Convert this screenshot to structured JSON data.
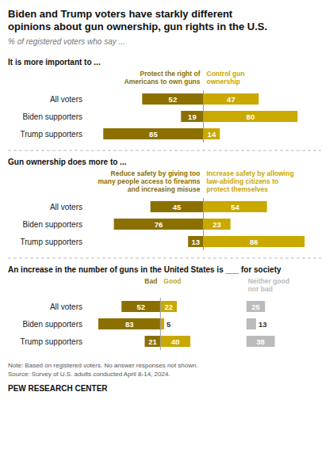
{
  "title": "Biden and Trump voters have starkly different\nopinions about gun ownership, gun rights in the U.S.",
  "subtitle": "% of registered voters who say ...",
  "note": "Note: Based on registered voters. No answer responses not shown.\nSource: Survey of U.S. adults conducted April 8-14, 2024.",
  "source": "PEW RESEARCH CENTER",
  "chart_data": [
    {
      "type": "bar",
      "orientation": "horizontal",
      "title": "It is more important to ...",
      "categories": [
        "All voters",
        "Biden supporters",
        "Trump supporters"
      ],
      "series": [
        {
          "name": "Protect the right of\nAmericans to own guns",
          "color": "#8B7000",
          "values": [
            52,
            19,
            85
          ]
        },
        {
          "name": "Control gun\nownership",
          "color": "#C9A800",
          "values": [
            47,
            80,
            14
          ]
        }
      ],
      "xlim": [
        0,
        100
      ],
      "data_labels": true,
      "tick_labels": "y"
    },
    {
      "type": "bar",
      "orientation": "horizontal",
      "title": "Gun ownership does more to ...",
      "categories": [
        "All voters",
        "Biden supporters",
        "Trump supporters"
      ],
      "series": [
        {
          "name": "Reduce safety by giving too\nmany people access to firearms\nand increasing misuse",
          "color": "#8B7000",
          "values": [
            45,
            76,
            13
          ]
        },
        {
          "name": "Increase safety by allowing\nlaw-abiding citizens to\nprotect themselves",
          "color": "#C9A800",
          "values": [
            54,
            23,
            86
          ]
        }
      ],
      "xlim": [
        0,
        100
      ],
      "data_labels": true,
      "tick_labels": "y"
    },
    {
      "type": "bar",
      "orientation": "horizontal",
      "title": "An increase in the number of guns in the United States is ___ for society",
      "categories": [
        "All voters",
        "Biden supporters",
        "Trump supporters"
      ],
      "series": [
        {
          "name": "Bad",
          "color": "#8B7000",
          "values": [
            52,
            83,
            21
          ]
        },
        {
          "name": "Good",
          "color": "#C9A800",
          "values": [
            22,
            5,
            40
          ]
        },
        {
          "name": "Neither good\nnor bad",
          "color": "#BBBBBB",
          "values": [
            25,
            13,
            38
          ]
        }
      ],
      "xlim": [
        0,
        100
      ],
      "data_labels": true,
      "tick_labels": "y"
    }
  ]
}
